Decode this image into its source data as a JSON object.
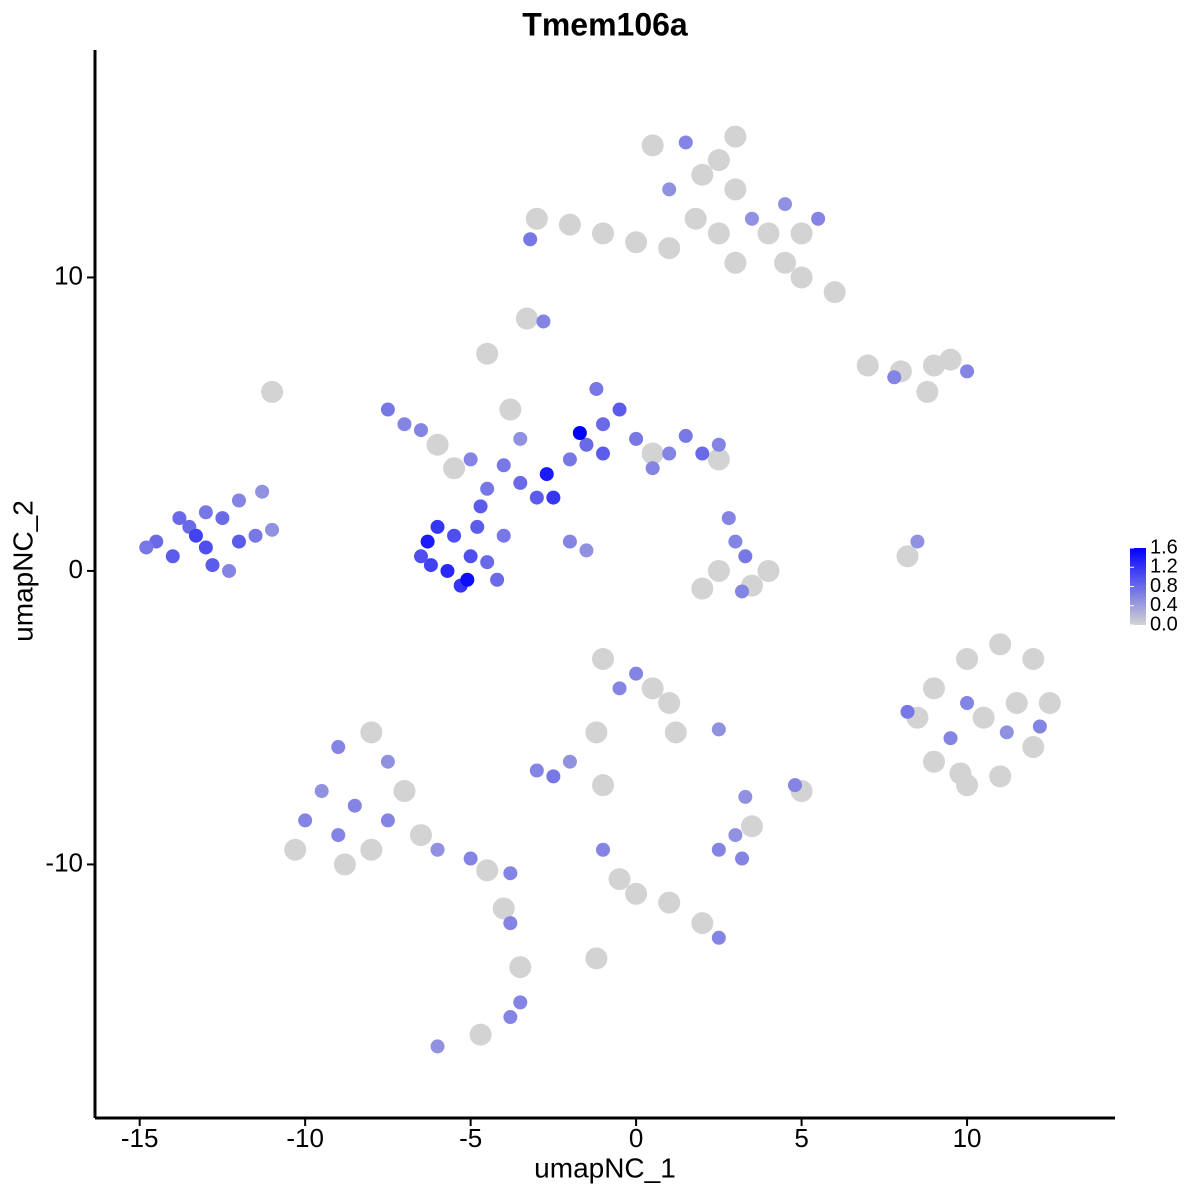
{
  "chart_data": {
    "type": "scatter",
    "title": "Tmem106a",
    "x_label": "umapNC_1",
    "y_label": "umapNC_2",
    "xlim": [
      -16.35,
      14.47
    ],
    "ylim": [
      -18.64,
      17.75
    ],
    "xticks": [
      -15,
      -10,
      -5,
      0,
      5,
      10
    ],
    "yticks": [
      -10,
      0,
      10
    ],
    "color_low": "#d3d3d3",
    "color_high": "#0000ff",
    "color_lim": [
      0,
      1.6
    ],
    "color_ticks": [
      {
        "value": 0,
        "label": "0.0"
      },
      0.4,
      0.8,
      1.2,
      1.6
    ],
    "x": [
      -14.5,
      -14,
      -13.5,
      -13,
      -12.5,
      -12,
      -11.5,
      -13,
      -13.8,
      -12.8,
      -12,
      -11.3,
      -14.8,
      -12.3,
      -11,
      -13.3,
      -6.3,
      -6,
      -5.5,
      -5,
      -5.7,
      -6.2,
      -4.8,
      -4.5,
      -5.3,
      -4.2,
      -6.5,
      -4.7,
      -4,
      -5.1,
      -7.5,
      -7,
      -6.5,
      -6,
      -5,
      -4,
      -3.5,
      -3,
      -2.5,
      -4.5,
      -2,
      -1.5,
      -1,
      -1.2,
      -0.5,
      0,
      0.5,
      1,
      1.5,
      2,
      2.5,
      -1,
      -2.7,
      -1.7,
      -4.5,
      -3.8,
      -3.5,
      -2,
      -1.5,
      -5.5,
      2.5,
      0.5,
      0.5,
      1.5,
      2.5,
      3,
      1,
      1.8,
      2.5,
      3.5,
      4,
      5,
      5.5,
      4.5,
      5,
      6,
      3,
      1,
      0,
      -1,
      -2,
      -3,
      -3.2,
      -2.8,
      3,
      2,
      4.5,
      7,
      8,
      9,
      9.5,
      10,
      7.8,
      8.8,
      8.2,
      8.5,
      3,
      3.3,
      2.5,
      3.5,
      2,
      3.2,
      4,
      2.8,
      9,
      10,
      11,
      12,
      12.5,
      12,
      11,
      10,
      9,
      8.5,
      10.5,
      11.5,
      10,
      9.5,
      8.2,
      11.2,
      12.2,
      9.8,
      -1,
      0,
      0.5,
      1,
      1.2,
      -0.5,
      -1.2,
      -2,
      -2.5,
      -3,
      -1,
      2.5,
      2.5,
      3,
      3.2,
      3.5,
      4.8,
      5,
      3.3,
      -1,
      -0.5,
      0,
      1,
      2,
      2.5,
      -1.2,
      -10,
      -9.5,
      -9,
      -8,
      -7.5,
      -8.5,
      -9,
      -8,
      -7.5,
      -7,
      -6.5,
      -6,
      -5,
      -4.5,
      -3.8,
      -4,
      -3.8,
      -3.5,
      -3.5,
      -3.8,
      -10.3,
      -8.8,
      -6,
      -4.7,
      -11,
      -3.3
    ],
    "y": [
      1.0,
      0.5,
      1.5,
      0.8,
      1.8,
      1.0,
      1.2,
      2.0,
      1.8,
      0.2,
      2.4,
      2.7,
      0.8,
      0.0,
      1.4,
      1.2,
      1.0,
      1.5,
      1.2,
      0.5,
      0.0,
      0.2,
      1.5,
      0.3,
      -0.5,
      -0.3,
      0.5,
      2.2,
      1.2,
      -0.3,
      5.5,
      5,
      4.8,
      4.3,
      3.8,
      3.6,
      3,
      2.5,
      2.5,
      2.8,
      3.8,
      4.3,
      5,
      6.2,
      5.5,
      4.5,
      4,
      4,
      4.6,
      4,
      3.8,
      4,
      3.3,
      4.7,
      7.4,
      5.5,
      4.5,
      1.0,
      0.7,
      3.5,
      4.3,
      3.5,
      14.5,
      14.6,
      14,
      13,
      13,
      12,
      11.5,
      12,
      11.5,
      11.5,
      12,
      10.5,
      10,
      9.5,
      10.5,
      11,
      11.2,
      11.5,
      11.8,
      12,
      11.3,
      8.5,
      14.8,
      13.5,
      12.5,
      7,
      6.8,
      7,
      7.2,
      6.8,
      6.6,
      6.1,
      0.5,
      1.0,
      1,
      0.5,
      0,
      -0.5,
      -0.6,
      -0.7,
      0,
      1.8,
      -4,
      -3,
      -2.5,
      -3,
      -4.5,
      -6,
      -7,
      -7.3,
      -6.5,
      -5,
      -5,
      -4.5,
      -4.5,
      -5.7,
      -4.8,
      -5.5,
      -5.3,
      -6.9,
      -3,
      -3.5,
      -4,
      -4.5,
      -5.5,
      -4,
      -5.5,
      -6.5,
      -7,
      -6.8,
      -7.3,
      -5.4,
      -9.5,
      -9,
      -9.8,
      -8.7,
      -7.3,
      -7.5,
      -7.7,
      -9.5,
      -10.5,
      -11,
      -11.3,
      -12,
      -12.5,
      -13.2,
      -8.5,
      -7.5,
      -6,
      -5.5,
      -6.5,
      -8,
      -9,
      -9.5,
      -8.5,
      -7.5,
      -9,
      -9.5,
      -9.8,
      -10.2,
      -10.3,
      -11.5,
      -12,
      -13.5,
      -14.7,
      -15.2,
      -9.5,
      -10,
      -16.2,
      -15.8,
      6.1,
      8.6
    ],
    "values": [
      0.8,
      0.9,
      0.8,
      1.0,
      0.8,
      0.9,
      0.7,
      0.7,
      0.8,
      0.9,
      0.6,
      0.5,
      0.7,
      0.6,
      0.5,
      1.1,
      1.4,
      1.2,
      1.0,
      1.0,
      1.3,
      1.1,
      0.9,
      0.8,
      1.2,
      0.8,
      1.0,
      0.9,
      0.7,
      1.5,
      0.7,
      0.6,
      0.6,
      0,
      0.6,
      0.7,
      0.8,
      0.9,
      1.2,
      0.7,
      0.7,
      0.8,
      0.8,
      0.7,
      0.9,
      0.7,
      0,
      0.6,
      0.7,
      0.8,
      0,
      0.9,
      1.4,
      1.6,
      0,
      0,
      0.5,
      0.6,
      0.5,
      0,
      0.6,
      0.6,
      0,
      0.6,
      0,
      0,
      0.5,
      0,
      0,
      0.5,
      0,
      0,
      0.6,
      0,
      0,
      0,
      0,
      0,
      0,
      0,
      0,
      0,
      0.7,
      0.6,
      0,
      0,
      0.5,
      0,
      0,
      0,
      0,
      0.6,
      0.6,
      0,
      0,
      0.5,
      0.6,
      0.7,
      0,
      0,
      0,
      0.6,
      0,
      0.6,
      0,
      0,
      0,
      0,
      0,
      0,
      0,
      0,
      0,
      0,
      0,
      0,
      0.6,
      0.6,
      0.7,
      0.5,
      0.6,
      0,
      0,
      0.6,
      0,
      0,
      0,
      0.6,
      0,
      0.5,
      0.7,
      0.6,
      0,
      0.5,
      0.6,
      0.5,
      0.6,
      0,
      0.6,
      0,
      0.5,
      0.6,
      0,
      0,
      0,
      0,
      0.6,
      0,
      0.6,
      0.5,
      0.6,
      0,
      0.5,
      0.6,
      0.6,
      0,
      0.6,
      0,
      0,
      0.5,
      0.6,
      0,
      0.6,
      0,
      0.6,
      0,
      0.6,
      0.6,
      0,
      0,
      0.5,
      0,
      0,
      0
    ]
  }
}
